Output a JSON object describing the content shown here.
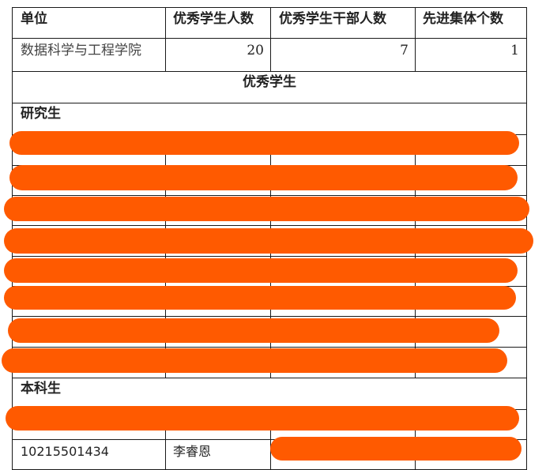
{
  "header": {
    "col1": "单位",
    "col2": "优秀学生人数",
    "col3": "优秀学生干部人数",
    "col4": "先进集体个数"
  },
  "summary_row": {
    "unit": "数据科学与工程学院",
    "excellent_students": "20",
    "excellent_cadres": "7",
    "advanced_groups": "1"
  },
  "section_title": "优秀学生",
  "graduate_label": "研究生",
  "undergrad_label": "本科生",
  "undergrad_row": {
    "student_id": "10215501434",
    "name": "李睿恩"
  },
  "colors": {
    "redaction": "#ff5a00",
    "border": "#1a1a1a"
  }
}
